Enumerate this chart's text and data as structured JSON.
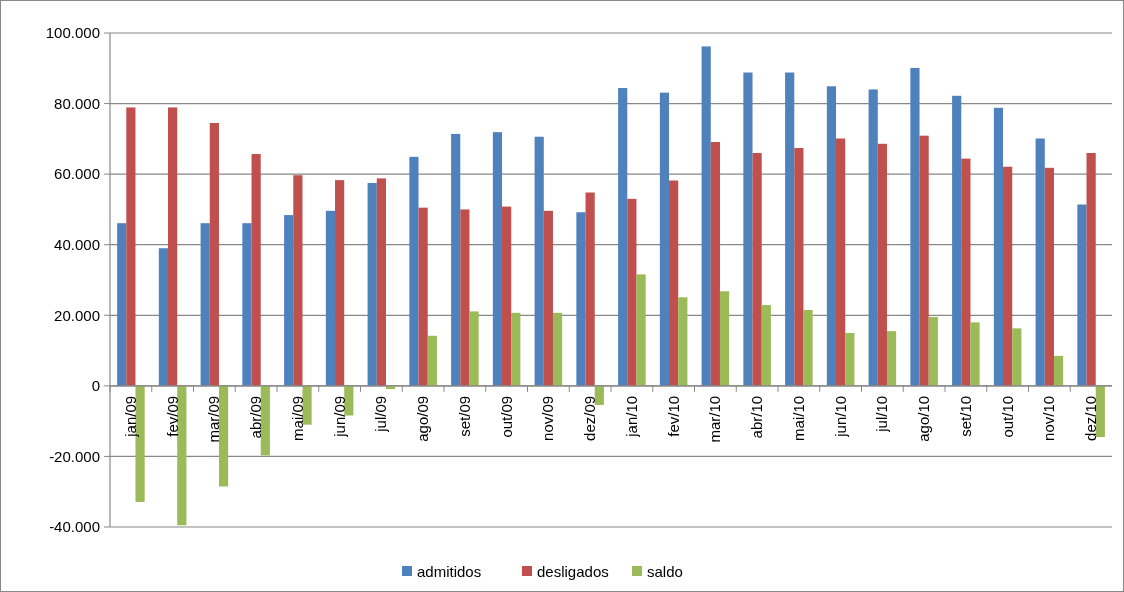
{
  "chart_data": {
    "type": "bar",
    "categories": [
      "jan/09",
      "fev/09",
      "mar/09",
      "abr/09",
      "mai/09",
      "jun/09",
      "jul/09",
      "ago/09",
      "set/09",
      "out/09",
      "nov/09",
      "dez/09",
      "jan/10",
      "fev/10",
      "mar/10",
      "abr/10",
      "mai/10",
      "jun/10",
      "jul/10",
      "ago/10",
      "set/10",
      "out/10",
      "nov/10",
      "dez/10"
    ],
    "series": [
      {
        "name": "admitidos",
        "color": "#4f81bd",
        "values": [
          46100,
          39000,
          46100,
          46100,
          48400,
          49600,
          57500,
          64900,
          71400,
          71900,
          70600,
          49200,
          84400,
          83100,
          96200,
          88800,
          88800,
          84900,
          84000,
          90100,
          82200,
          78800,
          70100,
          51400
        ]
      },
      {
        "name": "desligados",
        "color": "#c0504d",
        "values": [
          78900,
          78900,
          74500,
          65700,
          59700,
          58300,
          58800,
          50500,
          50000,
          50800,
          49600,
          54800,
          53000,
          58200,
          69100,
          66000,
          67400,
          70100,
          68600,
          70900,
          64400,
          62100,
          61800,
          66000
        ]
      },
      {
        "name": "saldo",
        "color": "#9bbb59",
        "values": [
          -32900,
          -39500,
          -28500,
          -19700,
          -11000,
          -8400,
          -900,
          14200,
          21100,
          20700,
          20700,
          -5400,
          31600,
          25100,
          26800,
          22900,
          21500,
          15000,
          15500,
          19500,
          18000,
          16300,
          8500,
          -14500
        ]
      }
    ],
    "ylim": [
      -40000,
      100000
    ],
    "yticks": [
      {
        "value": -40000,
        "label": "-40.000"
      },
      {
        "value": -20000,
        "label": "-20.000"
      },
      {
        "value": 0,
        "label": "0"
      },
      {
        "value": 20000,
        "label": "20.000"
      },
      {
        "value": 40000,
        "label": "40.000"
      },
      {
        "value": 60000,
        "label": "60.000"
      },
      {
        "value": 80000,
        "label": "80.000"
      },
      {
        "value": 100000,
        "label": "100.000"
      }
    ],
    "grid": "y",
    "legend": "bottom"
  }
}
